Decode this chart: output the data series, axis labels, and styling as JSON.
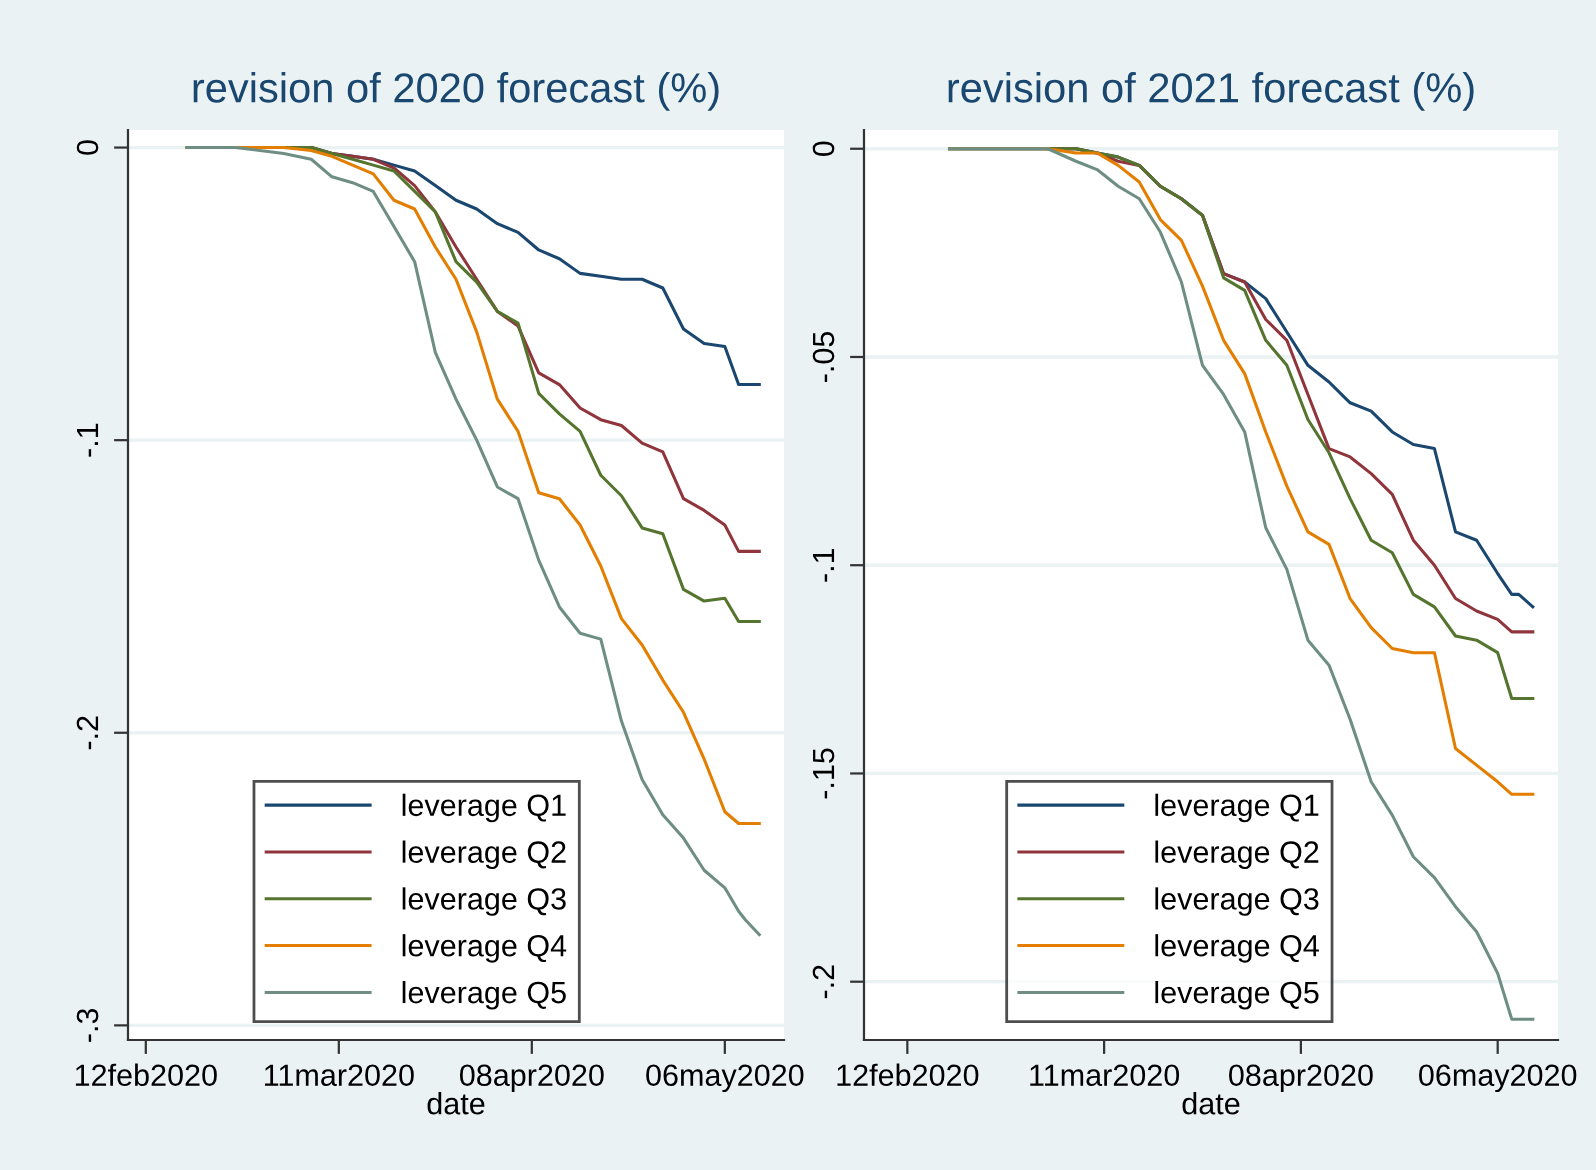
{
  "chart_data": [
    {
      "type": "line",
      "title": "revision of 2020 forecast (%)",
      "xlabel": "date",
      "x": [
        "2020-02-18",
        "2020-02-25",
        "2020-03-03",
        "2020-03-07",
        "2020-03-10",
        "2020-03-13",
        "2020-03-16",
        "2020-03-19",
        "2020-03-22",
        "2020-03-25",
        "2020-03-28",
        "2020-03-31",
        "2020-04-03",
        "2020-04-06",
        "2020-04-09",
        "2020-04-12",
        "2020-04-15",
        "2020-04-18",
        "2020-04-21",
        "2020-04-24",
        "2020-04-27",
        "2020-04-30",
        "2020-05-03",
        "2020-05-06",
        "2020-05-08",
        "2020-05-09",
        "2020-05-11"
      ],
      "series": [
        {
          "name": "leverage Q1",
          "color": "#1a476f",
          "values": [
            0,
            0,
            0,
            0,
            -0.002,
            -0.003,
            -0.004,
            -0.006,
            -0.008,
            -0.013,
            -0.018,
            -0.021,
            -0.026,
            -0.029,
            -0.035,
            -0.038,
            -0.043,
            -0.044,
            -0.045,
            -0.045,
            -0.048,
            -0.062,
            -0.067,
            -0.068,
            -0.081,
            -0.081,
            -0.081
          ]
        },
        {
          "name": "leverage Q2",
          "color": "#90353b",
          "values": [
            null,
            null,
            null,
            0,
            -0.002,
            -0.003,
            -0.004,
            -0.007,
            -0.013,
            -0.022,
            -0.034,
            -0.045,
            -0.056,
            -0.061,
            -0.077,
            -0.081,
            -0.089,
            -0.093,
            -0.095,
            -0.101,
            -0.104,
            -0.12,
            -0.124,
            -0.129,
            -0.138,
            -0.138,
            -0.138
          ]
        },
        {
          "name": "leverage Q3",
          "color": "#55752f",
          "values": [
            0,
            0,
            0,
            0,
            -0.002,
            -0.004,
            -0.006,
            -0.008,
            -0.015,
            -0.022,
            -0.039,
            -0.046,
            -0.056,
            -0.06,
            -0.084,
            -0.091,
            -0.097,
            -0.112,
            -0.119,
            -0.13,
            -0.132,
            -0.151,
            -0.155,
            -0.154,
            -0.162,
            -0.162,
            -0.162
          ]
        },
        {
          "name": "leverage Q4",
          "color": "#e37e00",
          "values": [
            0,
            0,
            0,
            -0.001,
            -0.003,
            -0.006,
            -0.009,
            -0.018,
            -0.021,
            -0.034,
            -0.045,
            -0.063,
            -0.086,
            -0.097,
            -0.118,
            -0.12,
            -0.129,
            -0.143,
            -0.161,
            -0.17,
            -0.182,
            -0.193,
            -0.209,
            -0.227,
            -0.231,
            -0.231,
            -0.231
          ]
        },
        {
          "name": "leverage Q5",
          "color": "#6e8e84",
          "values": [
            0,
            0,
            -0.002,
            -0.004,
            -0.01,
            -0.012,
            -0.015,
            -0.027,
            -0.039,
            -0.07,
            -0.086,
            -0.1,
            -0.116,
            -0.12,
            -0.141,
            -0.157,
            -0.166,
            -0.168,
            -0.196,
            -0.216,
            -0.228,
            -0.236,
            -0.247,
            -0.253,
            -0.261,
            -0.264,
            -0.269
          ]
        }
      ],
      "xlim": [
        "2020-02-09T10:00",
        "2020-05-14T14:00"
      ],
      "ylim": [
        -0.305,
        0.006
      ],
      "xticks": [
        {
          "value": "2020-02-12",
          "label": "12feb2020"
        },
        {
          "value": "2020-03-11",
          "label": "11mar2020"
        },
        {
          "value": "2020-04-08",
          "label": "08apr2020"
        },
        {
          "value": "2020-05-06",
          "label": "06may2020"
        }
      ],
      "yticks": [
        0,
        {
          "value": -0.1,
          "label": "-.1"
        },
        {
          "value": -0.2,
          "label": "-.2"
        },
        {
          "value": -0.3,
          "label": "-.3"
        }
      ],
      "grid": "y",
      "legend": "bottom",
      "marker": "none",
      "line_style": "solid"
    },
    {
      "type": "line",
      "title": "revision of 2021 forecast (%)",
      "xlabel": "date",
      "x": [
        "2020-02-18",
        "2020-02-25",
        "2020-03-03",
        "2020-03-07",
        "2020-03-10",
        "2020-03-13",
        "2020-03-16",
        "2020-03-19",
        "2020-03-22",
        "2020-03-25",
        "2020-03-28",
        "2020-03-31",
        "2020-04-03",
        "2020-04-06",
        "2020-04-09",
        "2020-04-12",
        "2020-04-15",
        "2020-04-18",
        "2020-04-21",
        "2020-04-24",
        "2020-04-27",
        "2020-04-30",
        "2020-05-03",
        "2020-05-06",
        "2020-05-08",
        "2020-05-09",
        "2020-05-11"
      ],
      "series": [
        {
          "name": "leverage Q1",
          "color": "#1a476f",
          "values": [
            0,
            0,
            0,
            0,
            -0.001,
            -0.002,
            -0.004,
            -0.009,
            -0.012,
            -0.016,
            -0.03,
            -0.032,
            -0.036,
            -0.044,
            -0.052,
            -0.056,
            -0.061,
            -0.063,
            -0.068,
            -0.071,
            -0.072,
            -0.092,
            -0.094,
            -0.102,
            -0.107,
            -0.107,
            -0.11
          ]
        },
        {
          "name": "leverage Q2",
          "color": "#90353b",
          "values": [
            null,
            null,
            0,
            0,
            -0.001,
            -0.003,
            -0.004,
            -0.009,
            -0.012,
            -0.016,
            -0.03,
            -0.032,
            -0.041,
            -0.046,
            -0.059,
            -0.072,
            -0.074,
            -0.078,
            -0.083,
            -0.094,
            -0.1,
            -0.108,
            -0.111,
            -0.113,
            -0.116,
            -0.116,
            -0.116
          ]
        },
        {
          "name": "leverage Q3",
          "color": "#55752f",
          "values": [
            0,
            0,
            0,
            0,
            -0.001,
            -0.002,
            -0.004,
            -0.009,
            -0.012,
            -0.016,
            -0.031,
            -0.034,
            -0.046,
            -0.052,
            -0.065,
            -0.073,
            -0.084,
            -0.094,
            -0.097,
            -0.107,
            -0.11,
            -0.117,
            -0.118,
            -0.121,
            -0.132,
            -0.132,
            -0.132
          ]
        },
        {
          "name": "leverage Q4",
          "color": "#e37e00",
          "values": [
            0,
            0,
            0,
            -0.001,
            -0.001,
            -0.004,
            -0.008,
            -0.017,
            -0.022,
            -0.033,
            -0.046,
            -0.054,
            -0.068,
            -0.081,
            -0.092,
            -0.095,
            -0.108,
            -0.115,
            -0.12,
            -0.121,
            -0.121,
            -0.144,
            -0.148,
            -0.152,
            -0.155,
            -0.155,
            -0.155
          ]
        },
        {
          "name": "leverage Q5",
          "color": "#6e8e84",
          "values": [
            0,
            0,
            0,
            -0.003,
            -0.005,
            -0.009,
            -0.012,
            -0.02,
            -0.032,
            -0.052,
            -0.059,
            -0.068,
            -0.091,
            -0.101,
            -0.118,
            -0.124,
            -0.137,
            -0.152,
            -0.16,
            -0.17,
            -0.175,
            -0.182,
            -0.188,
            -0.198,
            -0.209,
            -0.209,
            -0.209
          ]
        }
      ],
      "xlim": [
        "2020-02-05T20:00",
        "2020-05-14T14:00"
      ],
      "ylim": [
        -0.214,
        0.0045
      ],
      "xticks": [
        {
          "value": "2020-02-12",
          "label": "12feb2020"
        },
        {
          "value": "2020-03-11",
          "label": "11mar2020"
        },
        {
          "value": "2020-04-08",
          "label": "08apr2020"
        },
        {
          "value": "2020-05-06",
          "label": "06may2020"
        }
      ],
      "yticks": [
        0,
        {
          "value": -0.05,
          "label": "-.05"
        },
        {
          "value": -0.1,
          "label": "-.1"
        },
        {
          "value": -0.15,
          "label": "-.15"
        },
        {
          "value": -0.2,
          "label": "-.2"
        }
      ],
      "grid": "y",
      "legend": "bottom",
      "marker": "none",
      "line_style": "solid"
    }
  ]
}
